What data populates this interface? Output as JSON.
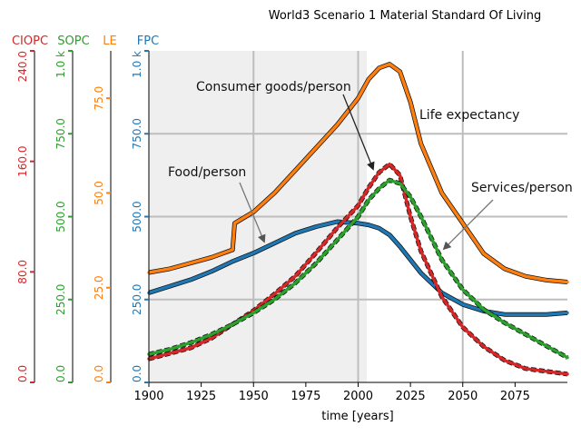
{
  "chart_data": {
    "type": "line",
    "title": "World3 Scenario 1 Material Standard Of Living",
    "xlabel": "time [years]",
    "xlim": [
      1900,
      2100
    ],
    "x_ticks": [
      "1900",
      "1925",
      "1950",
      "1975",
      "2000",
      "2025",
      "2050",
      "2075"
    ],
    "x_tick_values": [
      1900,
      1925,
      1950,
      1975,
      2000,
      2025,
      2050,
      2075
    ],
    "axes": [
      {
        "id": "ciopc",
        "label": "CIOPC",
        "color": "#d62728",
        "range": [
          0,
          240
        ],
        "ticks": [
          "0.0",
          "80.0",
          "160.0",
          "240.0"
        ],
        "tick_values": [
          0,
          80,
          160,
          240
        ]
      },
      {
        "id": "sopc",
        "label": "SOPC",
        "color": "#2ca02c",
        "range": [
          0,
          1000
        ],
        "ticks": [
          "0.0",
          "250.0",
          "500.0",
          "750.0",
          "1.0 k"
        ],
        "tick_values": [
          0,
          250,
          500,
          750,
          1000
        ]
      },
      {
        "id": "le",
        "label": "LE",
        "color": "#ff7f0e",
        "range": [
          0,
          87.5
        ],
        "ticks": [
          "0.0",
          "25.0",
          "50.0",
          "75.0"
        ],
        "tick_values": [
          0,
          25,
          50,
          75
        ]
      },
      {
        "id": "fpc",
        "label": "FPC",
        "color": "#1f77b4",
        "range": [
          0,
          1000
        ],
        "ticks": [
          "0.0",
          "250.0",
          "500.0",
          "750.0",
          "1.0 k"
        ],
        "tick_values": [
          0,
          250,
          500,
          750,
          1000
        ]
      }
    ],
    "series": [
      {
        "axis": "le",
        "color": "#ff7f0e",
        "x": [
          1900,
          1910,
          1920,
          1930,
          1940,
          1941,
          1950,
          1960,
          1970,
          1980,
          1990,
          2000,
          2005,
          2010,
          2015,
          2020,
          2025,
          2030,
          2040,
          2050,
          2060,
          2070,
          2080,
          2090,
          2100
        ],
        "y": [
          29,
          30,
          31.5,
          33,
          35,
          42,
          45,
          50,
          56,
          62,
          68,
          75,
          80,
          83,
          84,
          82,
          74,
          63,
          50,
          42,
          34,
          30,
          28,
          27,
          26.5
        ]
      },
      {
        "axis": "fpc",
        "color": "#1f77b4",
        "x": [
          1900,
          1910,
          1920,
          1930,
          1940,
          1950,
          1960,
          1970,
          1980,
          1990,
          2000,
          2005,
          2010,
          2015,
          2020,
          2025,
          2030,
          2040,
          2050,
          2060,
          2070,
          2080,
          2090,
          2100
        ],
        "y": [
          270,
          290,
          310,
          335,
          365,
          390,
          420,
          450,
          470,
          485,
          480,
          475,
          465,
          445,
          410,
          370,
          330,
          270,
          235,
          215,
          205,
          205,
          205,
          210
        ]
      },
      {
        "axis": "ciopc",
        "color": "#d62728",
        "x": [
          1900,
          1910,
          1920,
          1930,
          1940,
          1950,
          1960,
          1970,
          1980,
          1990,
          2000,
          2005,
          2010,
          2015,
          2020,
          2025,
          2030,
          2040,
          2050,
          2060,
          2070,
          2080,
          2090,
          2100
        ],
        "y": [
          17,
          21,
          25,
          32,
          42,
          52,
          64,
          77,
          94,
          112,
          128,
          141,
          152,
          158,
          150,
          120,
          95,
          62,
          40,
          26,
          16,
          10,
          8,
          6
        ]
      },
      {
        "axis": "sopc",
        "color": "#2ca02c",
        "x": [
          1900,
          1910,
          1920,
          1930,
          1940,
          1950,
          1960,
          1970,
          1980,
          1990,
          2000,
          2005,
          2010,
          2015,
          2020,
          2025,
          2030,
          2040,
          2050,
          2060,
          2070,
          2080,
          2090,
          2100
        ],
        "y": [
          85,
          100,
          120,
          145,
          175,
          210,
          250,
          300,
          360,
          430,
          500,
          550,
          585,
          610,
          600,
          560,
          500,
          370,
          280,
          220,
          180,
          145,
          110,
          75
        ]
      }
    ],
    "annotations": [
      "Consumer goods/person",
      "Life expectancy",
      "Food/person",
      "Services/person"
    ]
  }
}
